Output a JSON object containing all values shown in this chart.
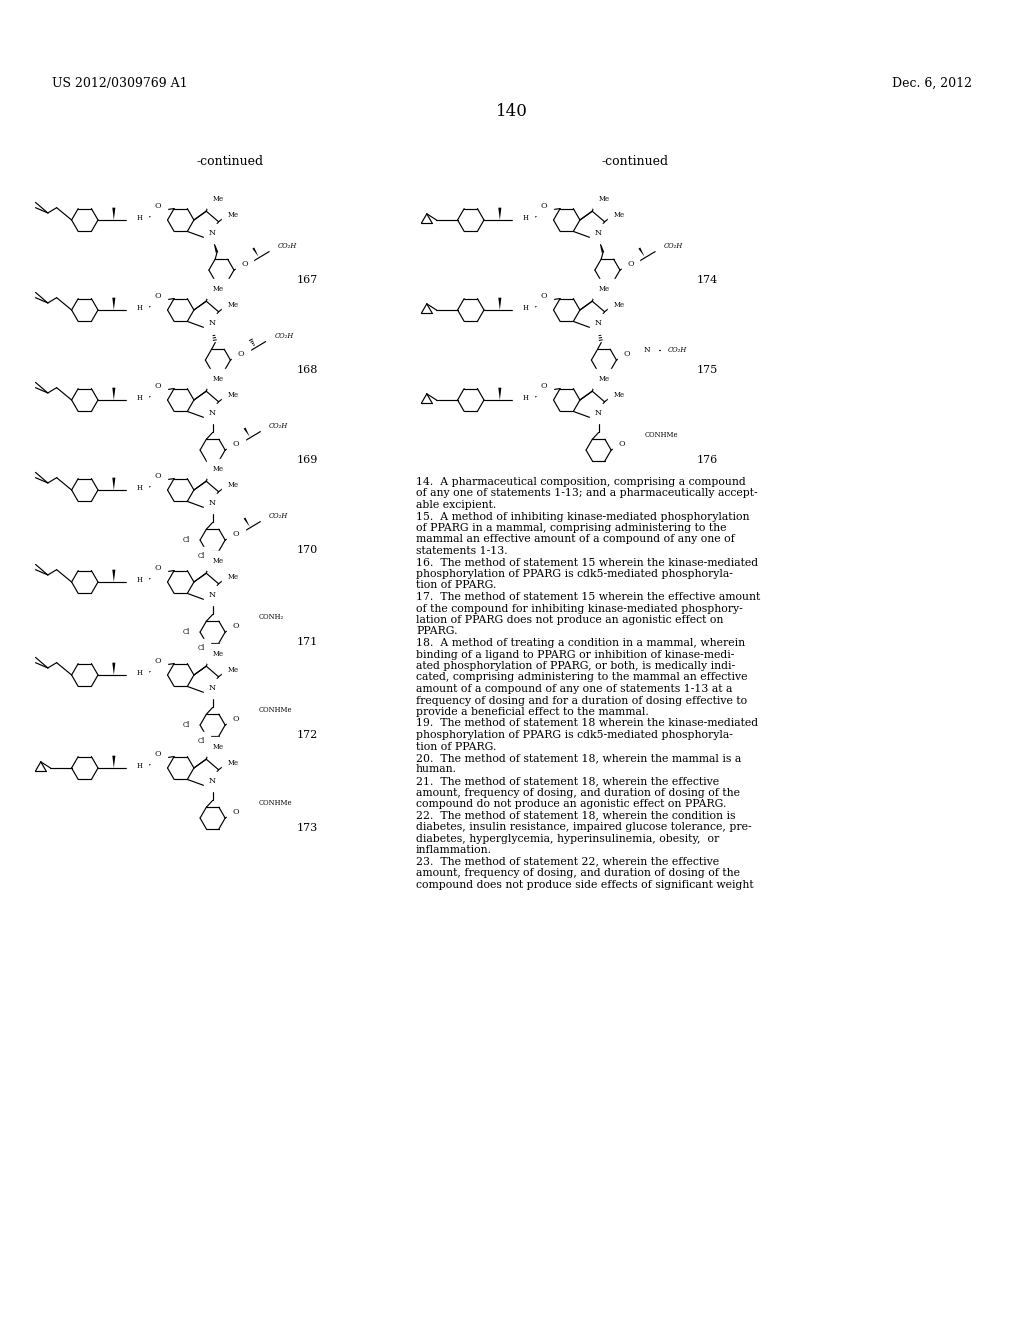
{
  "page_number": "140",
  "patent_number": "US 2012/0309769 A1",
  "patent_date": "Dec. 6, 2012",
  "background_color": "#ffffff",
  "text_color": "#000000",
  "left_continued": "-continued",
  "right_continued": "-continued",
  "compound_numbers_left": [
    "167",
    "168",
    "169",
    "170",
    "171",
    "172",
    "173"
  ],
  "compound_numbers_right": [
    "174",
    "175",
    "176"
  ],
  "claims_text_lines": [
    "14.  A pharmaceutical composition, comprising a compound",
    "of any one of statements 1-13; and a pharmaceutically accept-",
    "able excipient.",
    "15.  A method of inhibiting kinase-mediated phosphorylation",
    "of PPARG in a mammal, comprising administering to the",
    "mammal an effective amount of a compound of any one of",
    "statements 1-13.",
    "16.  The method of statement 15 wherein the kinase-mediated",
    "phosphorylation of PPARG is cdk5-mediated phosphoryla-",
    "tion of PPARG.",
    "17.  The method of statement 15 wherein the effective amount",
    "of the compound for inhibiting kinase-mediated phosphory-",
    "lation of PPARG does not produce an agonistic effect on",
    "PPARG.",
    "18.  A method of treating a condition in a mammal, wherein",
    "binding of a ligand to PPARG or inhibition of kinase-medi-",
    "ated phosphorylation of PPARG, or both, is medically indi-",
    "cated, comprising administering to the mammal an effective",
    "amount of a compound of any one of statements 1-13 at a",
    "frequency of dosing and for a duration of dosing effective to",
    "provide a beneficial effect to the mammal.",
    "19.  The method of statement 18 wherein the kinase-mediated",
    "phosphorylation of PPARG is cdk5-mediated phosphoryla-",
    "tion of PPARG.",
    "20.  The method of statement 18, wherein the mammal is a",
    "human.",
    "21.  The method of statement 18, wherein the effective",
    "amount, frequency of dosing, and duration of dosing of the",
    "compound do not produce an agonistic effect on PPARG.",
    "22.  The method of statement 18, wherein the condition is",
    "diabetes, insulin resistance, impaired glucose tolerance, pre-",
    "diabetes, hyperglycemia, hyperinsulinemia, obesity,  or",
    "inflammation.",
    "23.  The method of statement 22, wherein the effective",
    "amount, frequency of dosing, and duration of dosing of the",
    "compound does not produce side effects of significant weight"
  ],
  "font_size_header": 9,
  "font_size_page": 12,
  "font_size_compound": 8,
  "font_size_claims": 7.8,
  "font_size_continued": 9
}
